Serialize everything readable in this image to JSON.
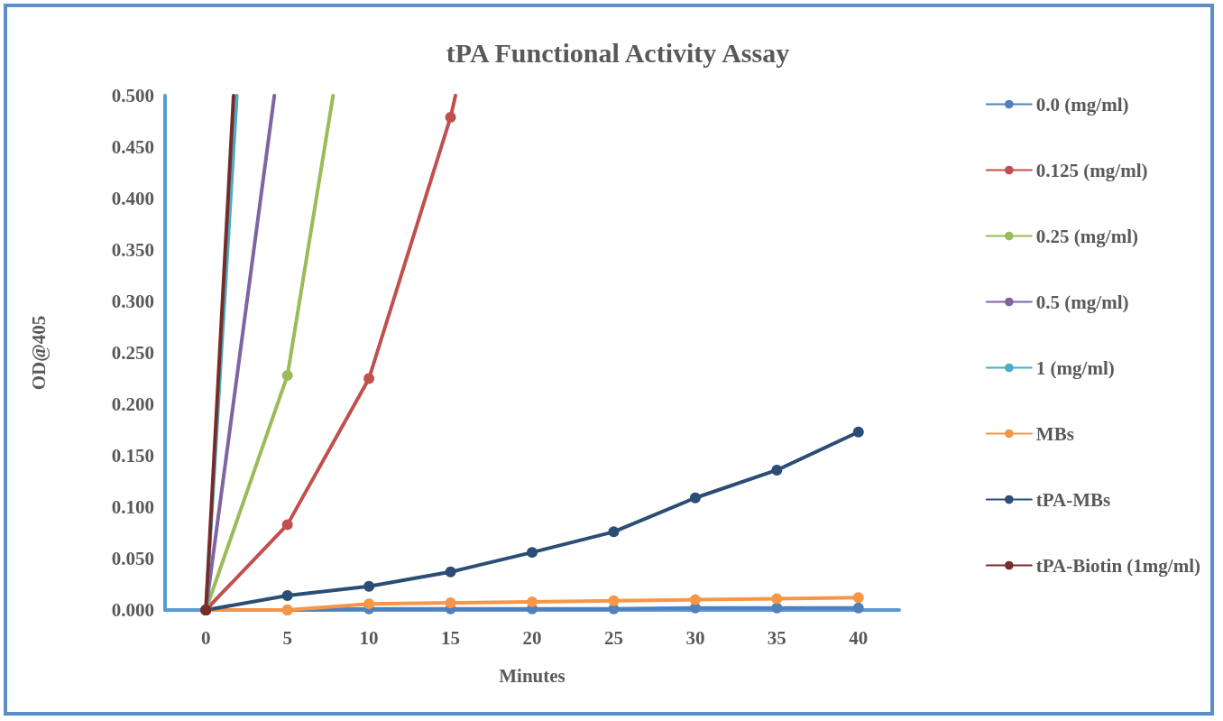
{
  "chart_data": {
    "type": "line",
    "title": "tPA Functional Activity Assay",
    "xlabel": "Minutes",
    "ylabel": "OD@405",
    "x": [
      0,
      5,
      10,
      15,
      20,
      25,
      30,
      35,
      40
    ],
    "series": [
      {
        "name": "0.0 (mg/ml)",
        "color": "#4f81bd",
        "values": [
          0,
          0,
          0.001,
          0.001,
          0.001,
          0.001,
          0.002,
          0.002,
          0.002
        ]
      },
      {
        "name": "0.125 (mg/ml)",
        "color": "#c0504d",
        "x": [
          0,
          5,
          10,
          15,
          15.3
        ],
        "values": [
          0,
          0.083,
          0.225,
          0.479,
          0.5
        ]
      },
      {
        "name": "0.25 (mg/ml)",
        "color": "#9bbb59",
        "x": [
          0,
          5,
          7.8
        ],
        "values": [
          0,
          0.228,
          0.5
        ]
      },
      {
        "name": "0.5 (mg/ml)",
        "color": "#8064a2",
        "x": [
          0,
          4.2
        ],
        "values": [
          0,
          0.5
        ]
      },
      {
        "name": "1 (mg/ml)",
        "color": "#4bacc6",
        "x": [
          0,
          1.9
        ],
        "values": [
          0,
          0.5
        ]
      },
      {
        "name": "MBs",
        "color": "#f79646",
        "values": [
          0,
          0,
          0.006,
          0.007,
          0.008,
          0.009,
          0.01,
          0.011,
          0.012
        ]
      },
      {
        "name": "tPA-MBs",
        "color": "#2c4d75",
        "values": [
          0,
          0.014,
          0.023,
          0.037,
          0.056,
          0.076,
          0.109,
          0.136,
          0.173
        ]
      },
      {
        "name": "tPA-Biotin (1mg/ml)",
        "color": "#772c2a",
        "x": [
          0,
          1.7
        ],
        "values": [
          0,
          0.5
        ]
      }
    ],
    "xlim": [
      -2.5,
      42.5
    ],
    "xticks": [
      0,
      5,
      10,
      15,
      20,
      25,
      30,
      35,
      40
    ],
    "ylim": [
      0,
      0.5
    ],
    "yticks": [
      {
        "value": 0,
        "label": "0.000"
      },
      {
        "value": 0.05,
        "label": "0.050"
      },
      {
        "value": 0.1,
        "label": "0.100"
      },
      {
        "value": 0.15,
        "label": "0.150"
      },
      {
        "value": 0.2,
        "label": "0.200"
      },
      {
        "value": 0.25,
        "label": "0.250"
      },
      {
        "value": 0.3,
        "label": "0.300"
      },
      {
        "value": 0.35,
        "label": "0.350"
      },
      {
        "value": 0.4,
        "label": "0.400"
      },
      {
        "value": 0.45,
        "label": "0.450"
      },
      {
        "value": 0.5,
        "label": "0.500"
      }
    ],
    "grid": false,
    "legend": "right",
    "marker": "circle",
    "line_style": "solid"
  }
}
